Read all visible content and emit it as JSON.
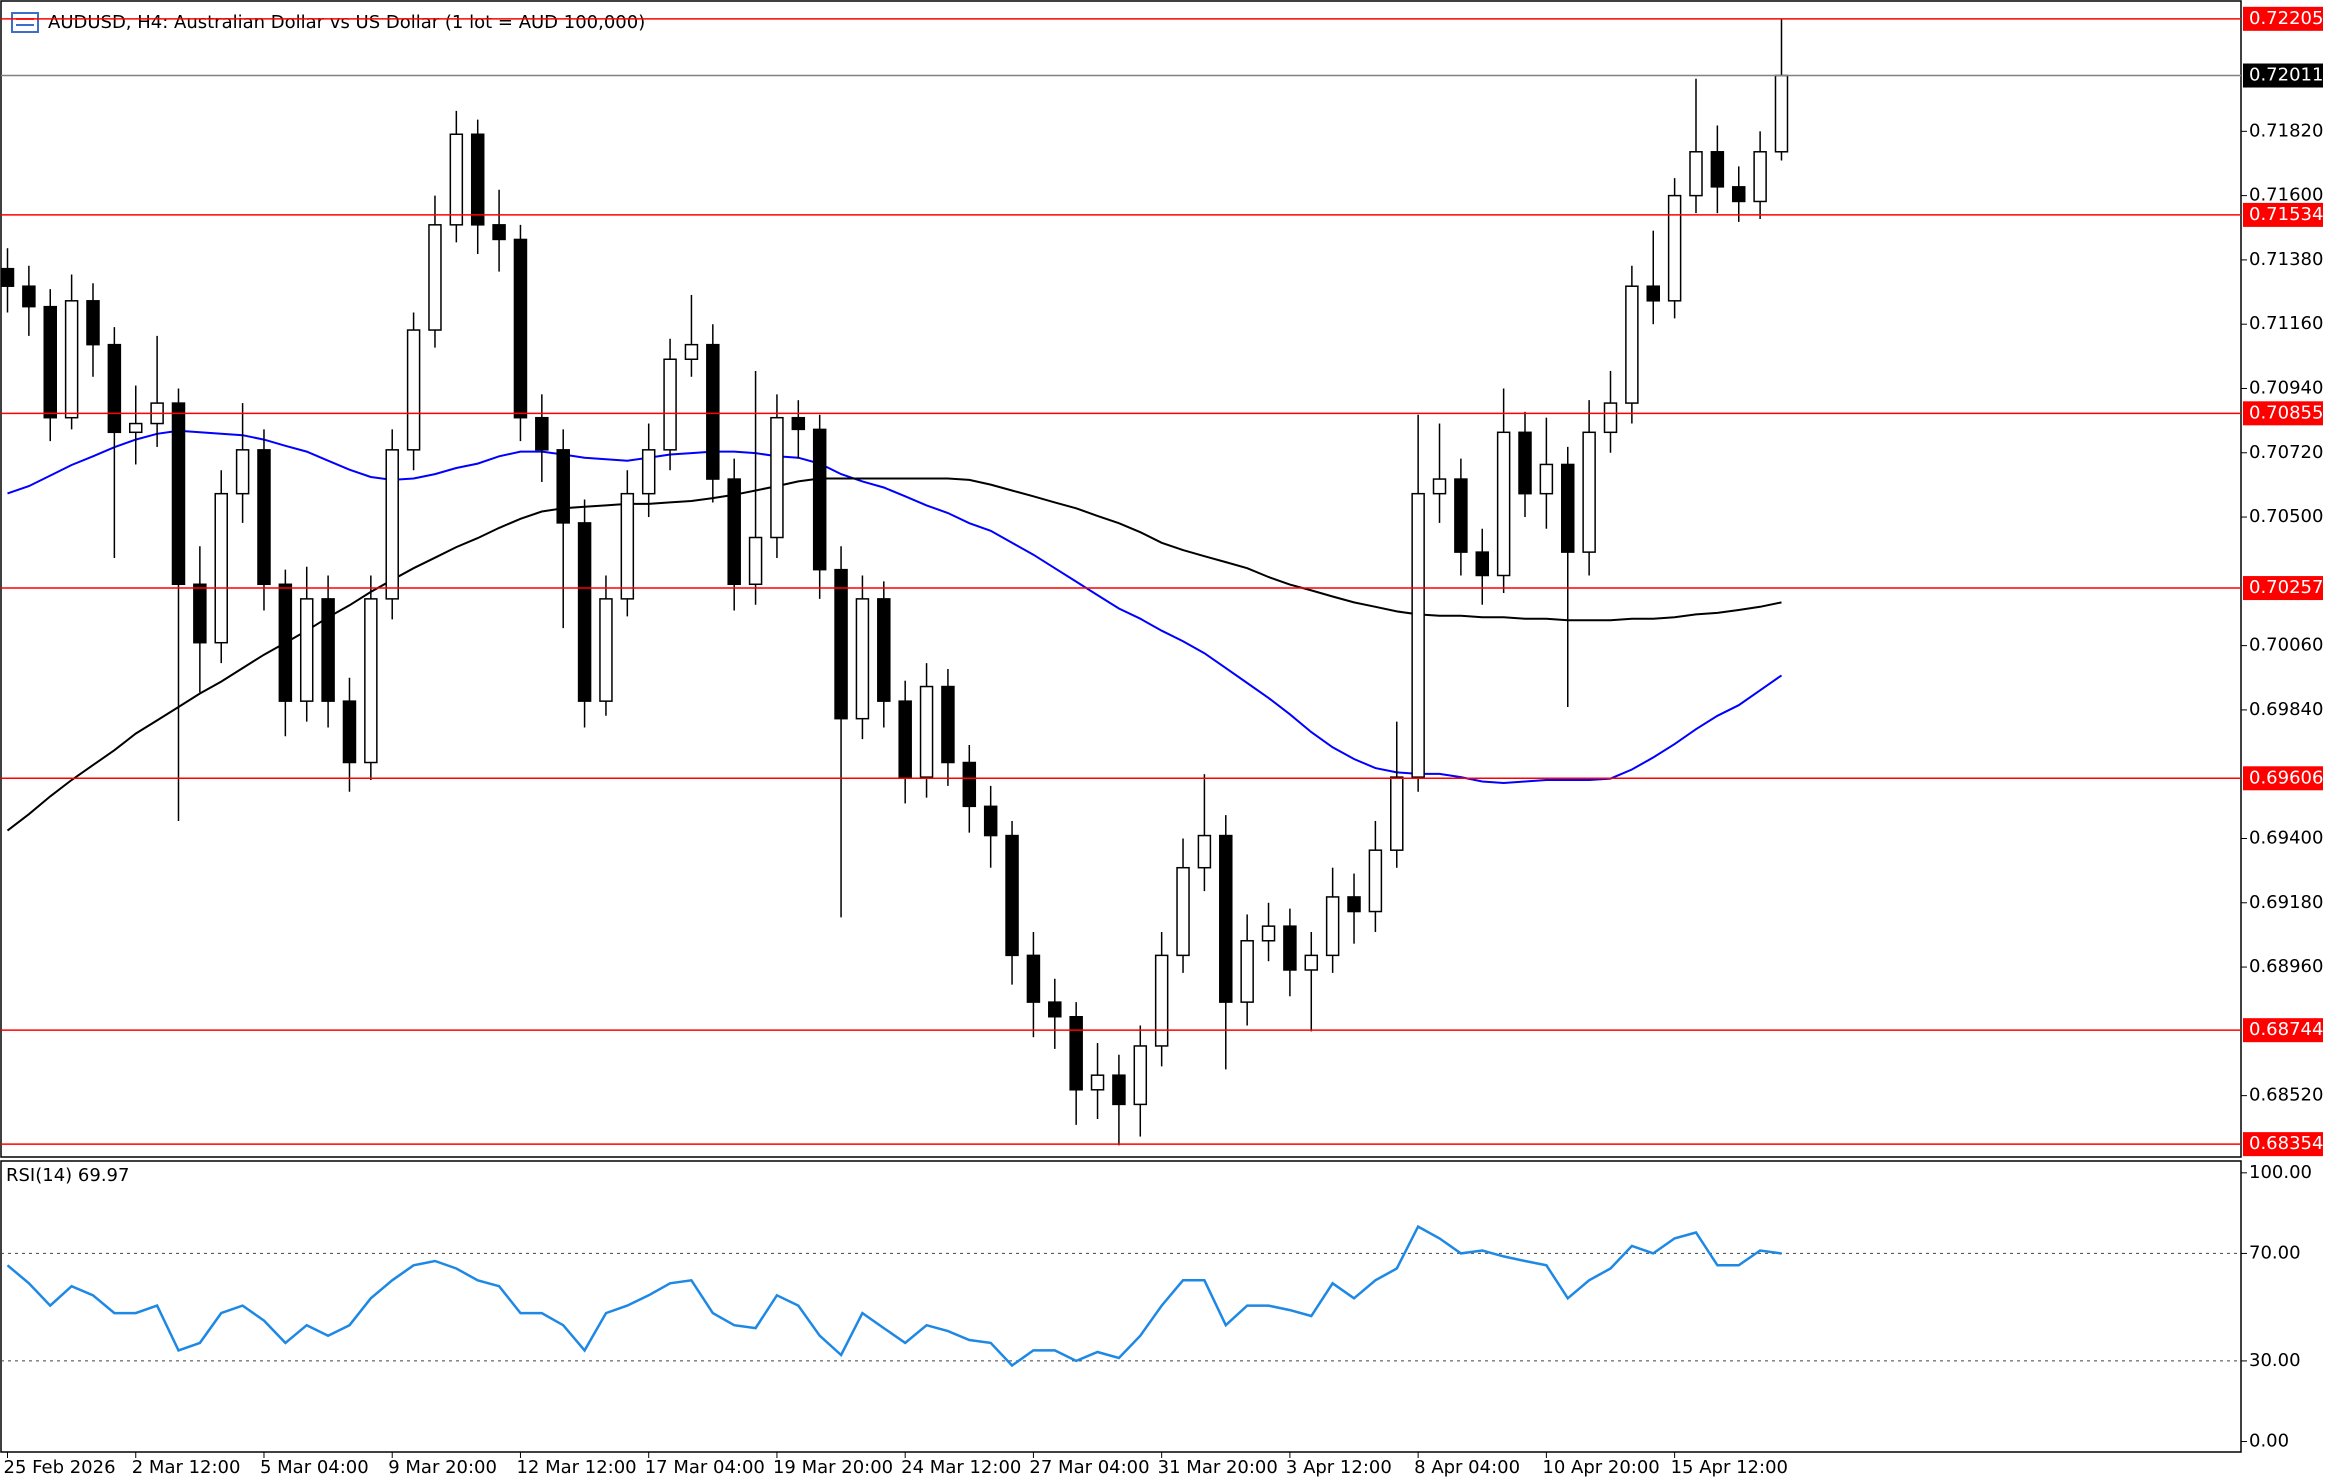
{
  "chart_data": [
    {
      "type": "candlestick",
      "title": "AUDUSD, H4:  Australian Dollar vs US Dollar (1 lot = AUD 100,000)",
      "categories": [
        "25 Feb 2026",
        null,
        null,
        null,
        null,
        null,
        "2 Mar 12:00",
        null,
        null,
        null,
        null,
        null,
        "5 Mar 04:00",
        null,
        null,
        null,
        null,
        null,
        "9 Mar 20:00",
        null,
        null,
        null,
        null,
        null,
        "12 Mar 12:00",
        null,
        null,
        null,
        null,
        null,
        "17 Mar 04:00",
        null,
        null,
        null,
        null,
        null,
        "19 Mar 20:00",
        null,
        null,
        null,
        null,
        null,
        "24 Mar 12:00",
        null,
        null,
        null,
        null,
        null,
        "27 Mar 04:00",
        null,
        null,
        null,
        null,
        null,
        "31 Mar 20:00",
        null,
        null,
        null,
        null,
        null,
        "3 Apr 12:00",
        null,
        null,
        null,
        null,
        null,
        "8 Apr 04:00",
        null,
        null,
        null,
        null,
        null,
        "10 Apr 20:00",
        null,
        null,
        null,
        null,
        null,
        "15 Apr 12:00",
        null,
        null,
        null,
        null,
        null
      ],
      "open": [
        0.7135,
        0.7129,
        0.7122,
        0.7084,
        0.7124,
        0.7109,
        0.7079,
        0.7082,
        0.7089,
        0.7027,
        0.7007,
        0.7058,
        0.7073,
        0.7027,
        0.6987,
        0.7022,
        0.6987,
        0.6966,
        0.7022,
        0.7073,
        0.7114,
        0.715,
        0.7181,
        0.715,
        0.7145,
        0.7084,
        0.7073,
        0.7048,
        0.6987,
        0.7022,
        0.7058,
        0.7073,
        0.7104,
        0.7109,
        0.7063,
        0.7027,
        0.7043,
        0.7084,
        0.708,
        0.7032,
        0.6981,
        0.7022,
        0.6987,
        0.6961,
        0.6992,
        0.6966,
        0.6951,
        0.6941,
        0.69,
        0.6884,
        0.6879,
        0.6854,
        0.6859,
        0.6849,
        0.6869,
        0.69,
        0.693,
        0.6941,
        0.6884,
        0.6905,
        0.691,
        0.6895,
        0.69,
        0.692,
        0.6915,
        0.6936,
        0.6961,
        0.7058,
        0.7063,
        0.7038,
        0.703,
        0.7079,
        0.7058,
        0.7068,
        0.7038,
        0.7079,
        0.7089,
        0.7129,
        0.7124,
        0.716,
        0.7175,
        0.7163,
        0.7158,
        0.7175
      ],
      "high": [
        0.7142,
        0.7136,
        0.7128,
        0.7133,
        0.713,
        0.7115,
        0.7095,
        0.7112,
        0.7094,
        0.704,
        0.7066,
        0.7089,
        0.708,
        0.7032,
        0.7033,
        0.703,
        0.6995,
        0.703,
        0.708,
        0.712,
        0.716,
        0.7189,
        0.7186,
        0.7162,
        0.715,
        0.7092,
        0.708,
        0.7056,
        0.703,
        0.7066,
        0.7082,
        0.7111,
        0.7126,
        0.7116,
        0.707,
        0.71,
        0.7092,
        0.709,
        0.7085,
        0.704,
        0.703,
        0.7028,
        0.6994,
        0.7,
        0.6998,
        0.6972,
        0.6958,
        0.6946,
        0.6908,
        0.6892,
        0.6884,
        0.687,
        0.6866,
        0.6876,
        0.6908,
        0.694,
        0.6962,
        0.6948,
        0.6914,
        0.6918,
        0.6916,
        0.6908,
        0.693,
        0.6928,
        0.6946,
        0.698,
        0.7085,
        0.7082,
        0.707,
        0.7046,
        0.7094,
        0.7086,
        0.7084,
        0.7074,
        0.709,
        0.71,
        0.7136,
        0.7148,
        0.7166,
        0.72,
        0.7184,
        0.717,
        0.7182,
        0.72205
      ],
      "low": [
        0.712,
        0.7112,
        0.7076,
        0.708,
        0.7098,
        0.7036,
        0.7068,
        0.7074,
        0.6946,
        0.699,
        0.7,
        0.7048,
        0.7018,
        0.6975,
        0.698,
        0.6978,
        0.6956,
        0.696,
        0.7015,
        0.7066,
        0.7108,
        0.7144,
        0.714,
        0.7134,
        0.7076,
        0.7062,
        0.7012,
        0.6978,
        0.6982,
        0.7016,
        0.705,
        0.7066,
        0.7098,
        0.7055,
        0.7018,
        0.702,
        0.7036,
        0.707,
        0.7022,
        0.6913,
        0.6974,
        0.6978,
        0.6952,
        0.6954,
        0.6958,
        0.6942,
        0.693,
        0.689,
        0.6872,
        0.6868,
        0.6842,
        0.6844,
        0.6835,
        0.6838,
        0.6862,
        0.6894,
        0.6922,
        0.6861,
        0.6876,
        0.6898,
        0.6886,
        0.6874,
        0.6894,
        0.6904,
        0.6908,
        0.693,
        0.6956,
        0.7048,
        0.703,
        0.702,
        0.7024,
        0.705,
        0.7046,
        0.6985,
        0.703,
        0.7072,
        0.7082,
        0.7116,
        0.7118,
        0.7154,
        0.7154,
        0.7151,
        0.7152,
        0.7172
      ],
      "close": [
        0.7129,
        0.7122,
        0.7084,
        0.7124,
        0.7109,
        0.7079,
        0.7082,
        0.7089,
        0.7027,
        0.7007,
        0.7058,
        0.7073,
        0.7027,
        0.6987,
        0.7022,
        0.6987,
        0.6966,
        0.7022,
        0.7073,
        0.7114,
        0.715,
        0.7181,
        0.715,
        0.7145,
        0.7084,
        0.7073,
        0.7048,
        0.6987,
        0.7022,
        0.7058,
        0.7073,
        0.7104,
        0.7109,
        0.7063,
        0.7027,
        0.7043,
        0.7084,
        0.708,
        0.7032,
        0.6981,
        0.7022,
        0.6987,
        0.6961,
        0.6992,
        0.6966,
        0.6951,
        0.6941,
        0.69,
        0.6884,
        0.6879,
        0.6854,
        0.6859,
        0.6849,
        0.6869,
        0.69,
        0.693,
        0.6941,
        0.6884,
        0.6905,
        0.691,
        0.6895,
        0.69,
        0.692,
        0.6915,
        0.6936,
        0.6961,
        0.7058,
        0.7063,
        0.7038,
        0.703,
        0.7079,
        0.7058,
        0.7068,
        0.7038,
        0.7079,
        0.7089,
        0.7129,
        0.7124,
        0.716,
        0.7175,
        0.7163,
        0.7158,
        0.7175,
        0.72011
      ],
      "up_color": "#ffffff",
      "down_color": "#000000",
      "outline_color": "#000000",
      "overlays": [
        {
          "color": "#0000ff",
          "values": [
            0.70581,
            0.70606,
            0.70642,
            0.70678,
            0.70708,
            0.70739,
            0.70765,
            0.70785,
            0.70795,
            0.7079,
            0.70785,
            0.7078,
            0.70765,
            0.70744,
            0.70724,
            0.70693,
            0.70662,
            0.70637,
            0.70627,
            0.70632,
            0.70647,
            0.70668,
            0.70683,
            0.70708,
            0.70724,
            0.70724,
            0.70714,
            0.70703,
            0.70698,
            0.70693,
            0.70703,
            0.70714,
            0.70719,
            0.70724,
            0.70724,
            0.70719,
            0.70708,
            0.70703,
            0.70683,
            0.70647,
            0.70622,
            0.70601,
            0.70571,
            0.7054,
            0.70514,
            0.70479,
            0.70453,
            0.70412,
            0.70371,
            0.70325,
            0.70279,
            0.70233,
            0.70187,
            0.70152,
            0.70111,
            0.70075,
            0.70034,
            0.69983,
            0.69932,
            0.69881,
            0.69825,
            0.69764,
            0.69712,
            0.69672,
            0.69641,
            0.69626,
            0.69621,
            0.69621,
            0.6961,
            0.69595,
            0.6959,
            0.69595,
            0.696,
            0.696,
            0.696,
            0.69605,
            0.69636,
            0.69677,
            0.69723,
            0.69774,
            0.6982,
            0.69856,
            0.69907,
            0.69958
          ]
        },
        {
          "color": "#000000",
          "values": [
            0.69427,
            0.69483,
            0.69544,
            0.696,
            0.69651,
            0.69702,
            0.69759,
            0.69804,
            0.6985,
            0.69896,
            0.69937,
            0.69983,
            0.70029,
            0.7007,
            0.70111,
            0.70157,
            0.70198,
            0.70244,
            0.70285,
            0.70325,
            0.70361,
            0.70397,
            0.70428,
            0.70463,
            0.70494,
            0.70519,
            0.7053,
            0.70535,
            0.7054,
            0.70545,
            0.70545,
            0.7055,
            0.70555,
            0.70565,
            0.70576,
            0.70591,
            0.70606,
            0.70622,
            0.70632,
            0.70632,
            0.70632,
            0.70632,
            0.70632,
            0.70632,
            0.70632,
            0.70627,
            0.70611,
            0.70591,
            0.70571,
            0.7055,
            0.7053,
            0.70504,
            0.70479,
            0.70448,
            0.70412,
            0.70387,
            0.70366,
            0.70346,
            0.70325,
            0.70295,
            0.70269,
            0.70249,
            0.70228,
            0.70208,
            0.70193,
            0.70177,
            0.70167,
            0.70162,
            0.70162,
            0.70157,
            0.70157,
            0.70152,
            0.70152,
            0.70147,
            0.70147,
            0.70147,
            0.70152,
            0.70152,
            0.70157,
            0.70167,
            0.70172,
            0.70182,
            0.70193,
            0.70208
          ]
        }
      ],
      "levels": [
        0.72205,
        0.71534,
        0.70855,
        0.70257,
        0.69606,
        0.68744,
        0.68354
      ],
      "level_color": "#ff0000",
      "last_price": 0.72011,
      "last_price_color": "#808080",
      "ylim": [
        0.6831,
        0.72266
      ],
      "yticks": [
        {
          "value": 0.6852,
          "label": "0.68520"
        },
        {
          "value": 0.6896,
          "label": "0.68960"
        },
        {
          "value": 0.6918,
          "label": "0.69180"
        },
        {
          "value": 0.694,
          "label": "0.69400"
        },
        {
          "value": 0.6984,
          "label": "0.69840"
        },
        {
          "value": 0.7006,
          "label": "0.70060"
        },
        {
          "value": 0.705,
          "label": "0.70500"
        },
        {
          "value": 0.7072,
          "label": "0.70720"
        },
        {
          "value": 0.7094,
          "label": "0.70940"
        },
        {
          "value": 0.7116,
          "label": "0.71160"
        },
        {
          "value": 0.7138,
          "label": "0.71380"
        },
        {
          "value": 0.716,
          "label": "0.71600"
        },
        {
          "value": 0.7182,
          "label": "0.71820"
        }
      ],
      "grid": false
    },
    {
      "type": "line",
      "title": "RSI(14) 69.97",
      "color": "#1e88e5",
      "values": [
        65.6,
        58.9,
        50.6,
        57.8,
        54.4,
        47.8,
        47.8,
        50.6,
        33.9,
        36.7,
        47.8,
        50.6,
        45.0,
        36.7,
        43.3,
        39.4,
        43.3,
        53.3,
        60.0,
        65.6,
        67.2,
        64.4,
        60.0,
        57.8,
        47.8,
        47.8,
        43.3,
        33.9,
        47.8,
        50.6,
        54.4,
        58.9,
        60.0,
        47.8,
        43.3,
        42.2,
        54.4,
        50.6,
        39.4,
        32.2,
        47.8,
        42.2,
        36.7,
        43.3,
        41.1,
        37.8,
        36.7,
        28.3,
        33.9,
        33.9,
        30.0,
        33.3,
        31.1,
        39.4,
        50.6,
        60.0,
        60.0,
        43.3,
        50.6,
        50.6,
        48.9,
        46.7,
        58.9,
        53.3,
        60.0,
        64.4,
        80.0,
        75.6,
        70.0,
        71.1,
        68.9,
        67.2,
        65.6,
        53.3,
        60.0,
        64.4,
        72.8,
        70.0,
        75.6,
        77.8,
        65.6,
        65.6,
        71.1,
        69.97
      ],
      "ylim": [
        -3.9,
        104.4
      ],
      "yticks": [
        {
          "value": 0,
          "label": "0.00"
        },
        {
          "value": 30,
          "label": "30.00"
        },
        {
          "value": 70,
          "label": "70.00"
        },
        {
          "value": 100,
          "label": "100.00"
        }
      ],
      "dotted_levels": [
        30,
        70
      ]
    }
  ]
}
